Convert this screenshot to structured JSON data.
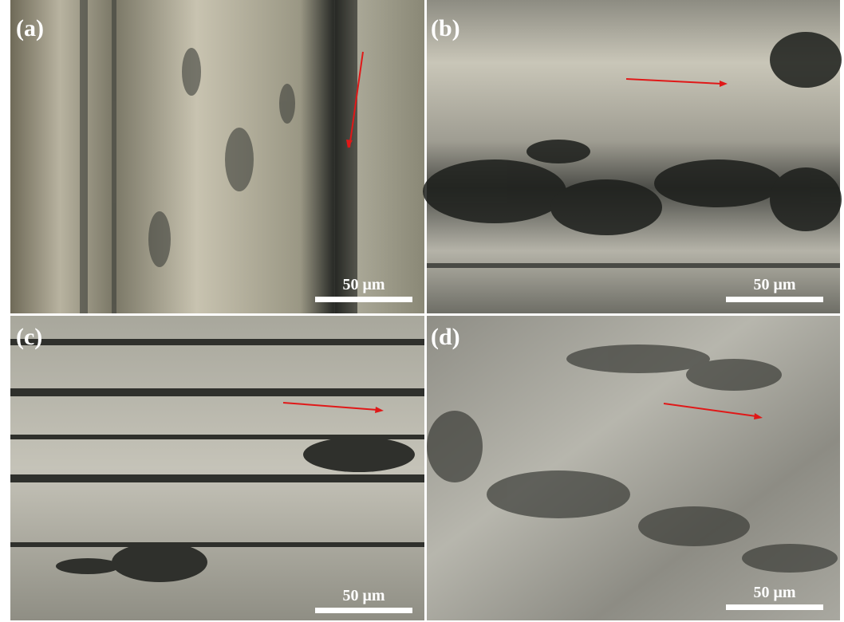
{
  "panels": [
    {
      "label": "(a)",
      "scale_label": "50 μm"
    },
    {
      "label": "(b)",
      "scale_label": "50 μm"
    },
    {
      "label": "(c)",
      "scale_label": "50 μm"
    },
    {
      "label": "(d)",
      "scale_label": "50 μm"
    }
  ]
}
